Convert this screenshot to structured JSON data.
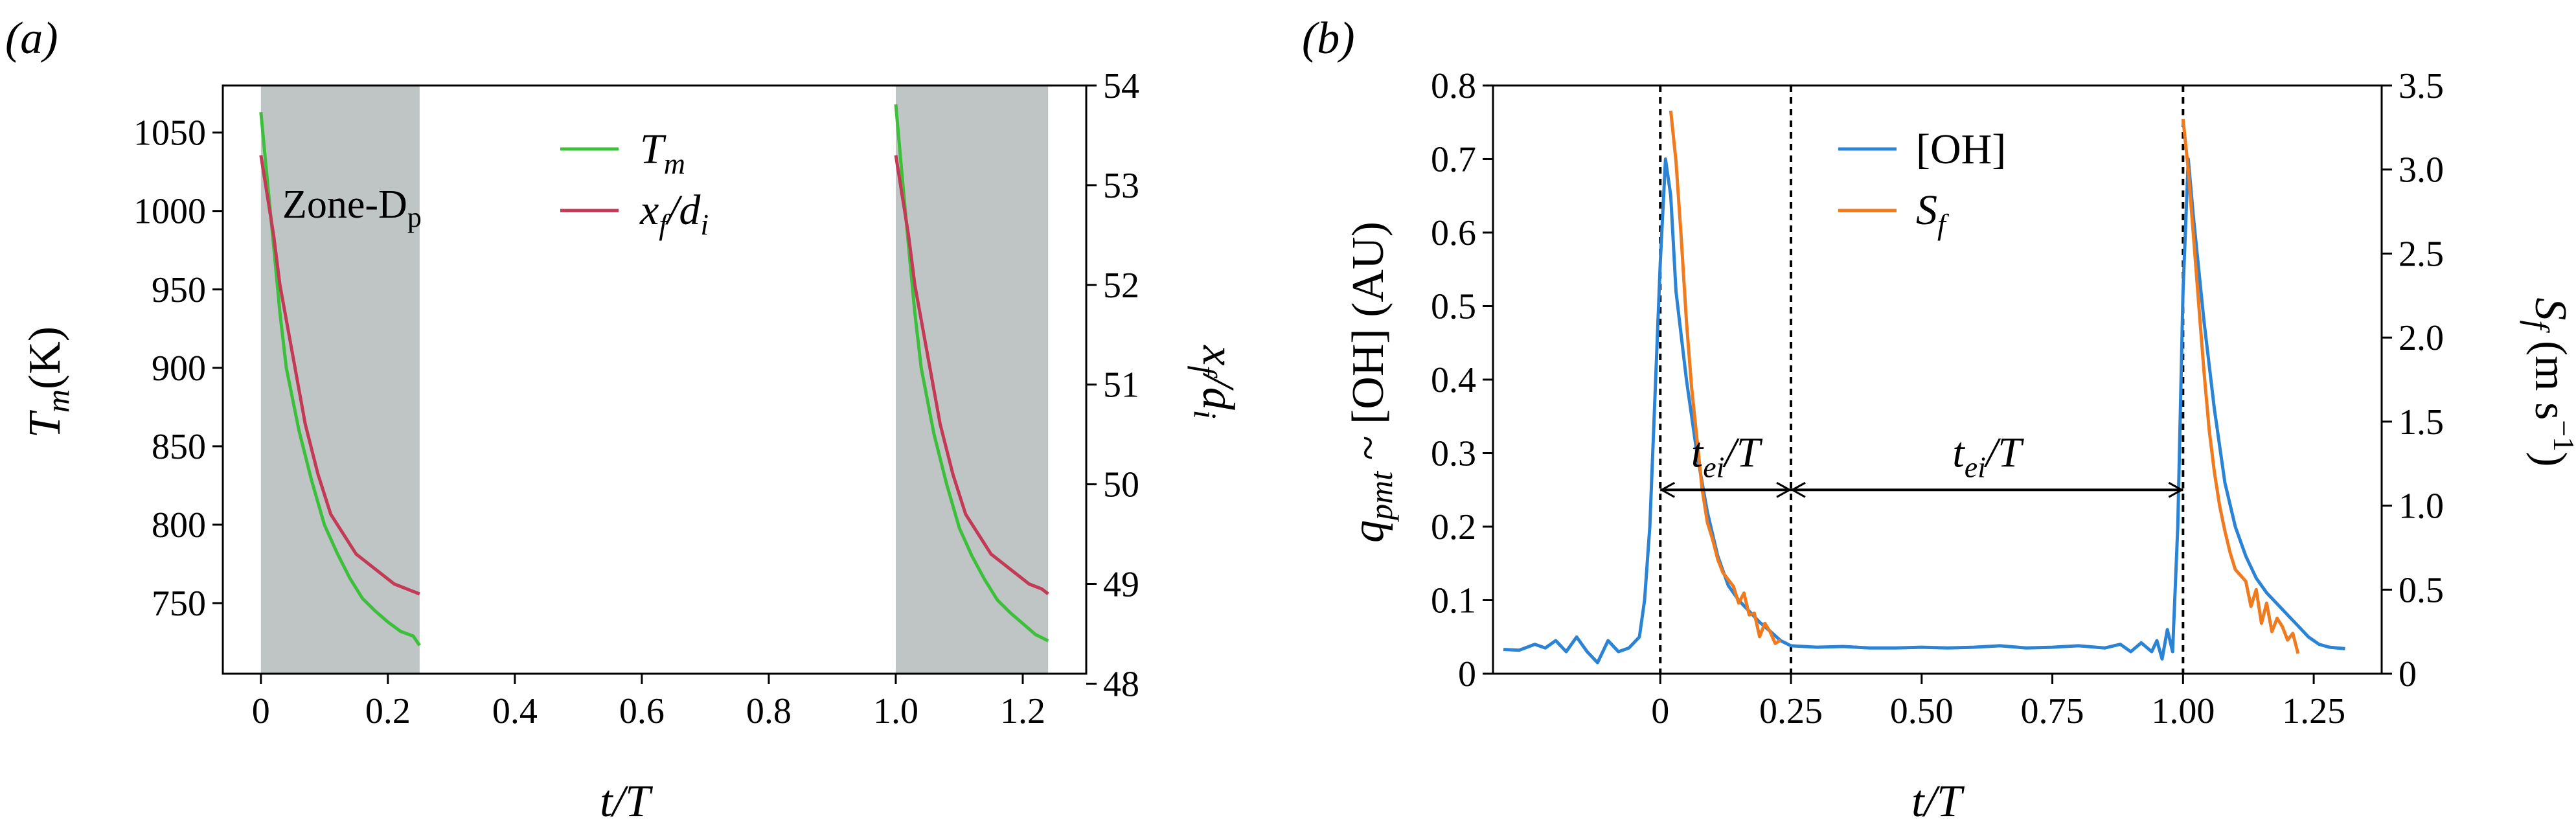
{
  "figure": {
    "panel_labels": [
      "(a)",
      "(b)"
    ]
  },
  "chart_data": [
    {
      "type": "line",
      "panel": "(a)",
      "xlabel": "t/T",
      "ylabel_left": "T_m (K)",
      "ylabel_right": "x_f/d_i",
      "xlim": [
        -0.06,
        1.3
      ],
      "ylim_left": [
        705,
        1080
      ],
      "ylim_right": [
        48.1,
        54
      ],
      "xticks": [
        0,
        0.2,
        0.4,
        0.6,
        0.8,
        1.0,
        1.2
      ],
      "xtick_labels": [
        "0",
        "0.2",
        "0.4",
        "0.6",
        "0.8",
        "1.0",
        "1.2"
      ],
      "yticks_left": [
        750,
        800,
        850,
        900,
        950,
        1000,
        1050
      ],
      "ytick_labels_left": [
        "750",
        "800",
        "850",
        "900",
        "950",
        "1000",
        "1050"
      ],
      "yticks_right": [
        48,
        49,
        50,
        51,
        52,
        53,
        54
      ],
      "ytick_labels_right": [
        "48",
        "49",
        "50",
        "51",
        "52",
        "53",
        "54"
      ],
      "shaded_regions": [
        [
          0,
          0.25
        ],
        [
          1.0,
          1.24
        ]
      ],
      "zone_label": "Zone-D",
      "zone_label_sub": "p",
      "legend": [
        {
          "name": "T",
          "sub": "m",
          "color": "#3cc03c"
        },
        {
          "name": "x_f/d_i",
          "color": "#c23a55"
        }
      ],
      "series": [
        {
          "name": "T_m",
          "axis": "left",
          "color": "#3cc03c",
          "segments": [
            {
              "x": [
                0.0,
                0.01,
                0.02,
                0.03,
                0.04,
                0.06,
                0.08,
                0.1,
                0.12,
                0.14,
                0.16,
                0.18,
                0.2,
                0.22,
                0.24,
                0.25
              ],
              "y": [
                1063,
                1020,
                978,
                935,
                900,
                860,
                828,
                800,
                782,
                766,
                753,
                745,
                738,
                732,
                729,
                723
              ]
            },
            {
              "x": [
                1.0,
                1.01,
                1.02,
                1.03,
                1.04,
                1.06,
                1.08,
                1.1,
                1.12,
                1.14,
                1.16,
                1.18,
                1.2,
                1.22,
                1.24
              ],
              "y": [
                1068,
                1022,
                978,
                935,
                900,
                858,
                826,
                798,
                780,
                765,
                752,
                744,
                737,
                730,
                726
              ]
            }
          ]
        },
        {
          "name": "x_f/d_i",
          "axis": "right",
          "color": "#c23a55",
          "segments": [
            {
              "x": [
                0.0,
                0.01,
                0.02,
                0.03,
                0.05,
                0.07,
                0.09,
                0.11,
                0.13,
                0.15,
                0.17,
                0.19,
                0.21,
                0.23,
                0.25
              ],
              "y": [
                53.3,
                52.9,
                52.5,
                52.0,
                51.3,
                50.6,
                50.1,
                49.7,
                49.5,
                49.3,
                49.2,
                49.1,
                49.0,
                48.95,
                48.9
              ]
            },
            {
              "x": [
                1.0,
                1.01,
                1.02,
                1.03,
                1.05,
                1.07,
                1.09,
                1.11,
                1.13,
                1.15,
                1.17,
                1.19,
                1.21,
                1.23,
                1.24
              ],
              "y": [
                53.3,
                52.9,
                52.5,
                52.0,
                51.3,
                50.6,
                50.1,
                49.7,
                49.5,
                49.3,
                49.2,
                49.1,
                49.0,
                48.95,
                48.9
              ]
            }
          ]
        }
      ]
    },
    {
      "type": "line",
      "panel": "(b)",
      "xlabel": "t/T",
      "ylabel_left_main": "q",
      "ylabel_left_sub": "pmt",
      "ylabel_left_rest": " ~ [OH] (AU)",
      "ylabel_right_main": "S",
      "ylabel_right_sub": "f",
      "ylabel_right_rest": " (m s",
      "ylabel_right_sup": "−1",
      "ylabel_right_close": ")",
      "xlim": [
        -0.32,
        1.38
      ],
      "ylim_left": [
        0,
        0.8
      ],
      "ylim_right": [
        0,
        3.5
      ],
      "xticks": [
        0,
        0.25,
        0.5,
        0.75,
        1.0,
        1.25
      ],
      "xtick_labels": [
        "0",
        "0.25",
        "0.50",
        "0.75",
        "1.00",
        "1.25"
      ],
      "yticks_left": [
        0,
        0.1,
        0.2,
        0.3,
        0.4,
        0.5,
        0.6,
        0.7,
        0.8
      ],
      "ytick_labels_left": [
        "0",
        "0.1",
        "0.2",
        "0.3",
        "0.4",
        "0.5",
        "0.6",
        "0.7",
        "0.8"
      ],
      "yticks_right": [
        0,
        0.5,
        1.0,
        1.5,
        2.0,
        2.5,
        3.0,
        3.5
      ],
      "ytick_labels_right": [
        "0",
        "0.5",
        "1.0",
        "1.5",
        "2.0",
        "2.5",
        "3.0",
        "3.5"
      ],
      "vlines": [
        0.0,
        0.25,
        1.0
      ],
      "annotations": [
        {
          "text": "t",
          "sub": "ei",
          "rest": "/T",
          "from": 0.0,
          "to": 0.25,
          "y": 0.25
        },
        {
          "text": "t",
          "sub": "ei",
          "rest": "/T",
          "from": 0.25,
          "to": 1.0,
          "y": 0.25
        }
      ],
      "legend": [
        {
          "name": "[OH]",
          "color": "#2b83d6"
        },
        {
          "name": "S",
          "sub": "f",
          "color": "#f07a1e"
        }
      ],
      "series": [
        {
          "name": "[OH]",
          "axis": "left",
          "color": "#2b83d6",
          "x": [
            -0.3,
            -0.27,
            -0.24,
            -0.22,
            -0.2,
            -0.18,
            -0.16,
            -0.14,
            -0.12,
            -0.1,
            -0.08,
            -0.06,
            -0.04,
            -0.03,
            -0.02,
            -0.01,
            0.0,
            0.01,
            0.02,
            0.03,
            0.05,
            0.07,
            0.09,
            0.11,
            0.13,
            0.15,
            0.17,
            0.19,
            0.21,
            0.23,
            0.25,
            0.3,
            0.35,
            0.4,
            0.45,
            0.5,
            0.55,
            0.6,
            0.65,
            0.7,
            0.75,
            0.8,
            0.85,
            0.88,
            0.9,
            0.92,
            0.94,
            0.95,
            0.96,
            0.97,
            0.98,
            0.99,
            1.0,
            1.01,
            1.02,
            1.04,
            1.06,
            1.08,
            1.1,
            1.12,
            1.14,
            1.16,
            1.18,
            1.2,
            1.22,
            1.24,
            1.26,
            1.28,
            1.31
          ],
          "y": [
            0.033,
            0.032,
            0.04,
            0.035,
            0.045,
            0.03,
            0.05,
            0.03,
            0.015,
            0.045,
            0.03,
            0.035,
            0.05,
            0.1,
            0.2,
            0.38,
            0.56,
            0.7,
            0.65,
            0.52,
            0.4,
            0.3,
            0.22,
            0.16,
            0.12,
            0.1,
            0.085,
            0.07,
            0.058,
            0.045,
            0.038,
            0.036,
            0.037,
            0.035,
            0.035,
            0.036,
            0.035,
            0.036,
            0.038,
            0.035,
            0.036,
            0.038,
            0.035,
            0.04,
            0.03,
            0.042,
            0.03,
            0.045,
            0.02,
            0.06,
            0.03,
            0.2,
            0.52,
            0.7,
            0.62,
            0.48,
            0.36,
            0.26,
            0.2,
            0.16,
            0.13,
            0.11,
            0.095,
            0.08,
            0.065,
            0.05,
            0.04,
            0.036,
            0.034
          ]
        },
        {
          "name": "S_f",
          "axis": "right",
          "color": "#f07a1e",
          "segments": [
            {
              "x": [
                0.02,
                0.025,
                0.03,
                0.04,
                0.05,
                0.06,
                0.07,
                0.08,
                0.09,
                0.1,
                0.11,
                0.12,
                0.14,
                0.15,
                0.16,
                0.17,
                0.18,
                0.19,
                0.2,
                0.21,
                0.22,
                0.23
              ],
              "y": [
                3.35,
                3.2,
                3.05,
                2.6,
                2.1,
                1.7,
                1.4,
                1.1,
                0.9,
                0.8,
                0.68,
                0.6,
                0.52,
                0.42,
                0.48,
                0.35,
                0.36,
                0.22,
                0.3,
                0.25,
                0.18,
                0.2
              ]
            },
            {
              "x": [
                1.0,
                1.005,
                1.01,
                1.02,
                1.03,
                1.04,
                1.05,
                1.06,
                1.07,
                1.08,
                1.09,
                1.1,
                1.12,
                1.13,
                1.14,
                1.15,
                1.16,
                1.17,
                1.18,
                1.19,
                1.2,
                1.21,
                1.22
              ],
              "y": [
                3.3,
                3.15,
                3.0,
                2.6,
                2.2,
                1.8,
                1.45,
                1.2,
                1.0,
                0.85,
                0.72,
                0.62,
                0.55,
                0.4,
                0.5,
                0.3,
                0.42,
                0.25,
                0.33,
                0.28,
                0.2,
                0.24,
                0.12
              ]
            }
          ]
        }
      ]
    }
  ]
}
